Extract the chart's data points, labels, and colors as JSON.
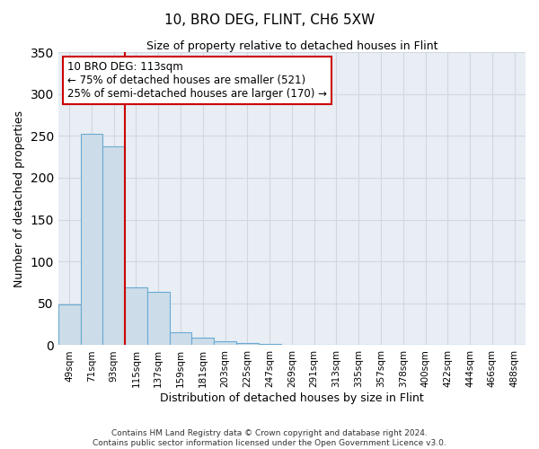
{
  "title": "10, BRO DEG, FLINT, CH6 5XW",
  "subtitle": "Size of property relative to detached houses in Flint",
  "xlabel": "Distribution of detached houses by size in Flint",
  "ylabel": "Number of detached properties",
  "bar_labels": [
    "49sqm",
    "71sqm",
    "93sqm",
    "115sqm",
    "137sqm",
    "159sqm",
    "181sqm",
    "203sqm",
    "225sqm",
    "247sqm",
    "269sqm",
    "291sqm",
    "313sqm",
    "335sqm",
    "357sqm",
    "378sqm",
    "400sqm",
    "422sqm",
    "444sqm",
    "466sqm",
    "488sqm"
  ],
  "bar_values": [
    49,
    252,
    237,
    69,
    64,
    16,
    9,
    5,
    3,
    2,
    0,
    0,
    0,
    0,
    0,
    0,
    0,
    0,
    0,
    0,
    0
  ],
  "bar_color": "#ccdce8",
  "bar_edge_color": "#6aaad4",
  "vline_x_index": 2.5,
  "annotation_title": "10 BRO DEG: 113sqm",
  "annotation_line1": "← 75% of detached houses are smaller (521)",
  "annotation_line2": "25% of semi-detached houses are larger (170) →",
  "annotation_box_color": "#ffffff",
  "annotation_box_edge": "#cc0000",
  "vline_color": "#cc0000",
  "ylim": [
    0,
    350
  ],
  "yticks": [
    0,
    50,
    100,
    150,
    200,
    250,
    300,
    350
  ],
  "footer1": "Contains HM Land Registry data © Crown copyright and database right 2024.",
  "footer2": "Contains public sector information licensed under the Open Government Licence v3.0.",
  "background_color": "#ffffff",
  "axes_bg_color": "#e8eef4",
  "grid_color": "#d0d8e0"
}
